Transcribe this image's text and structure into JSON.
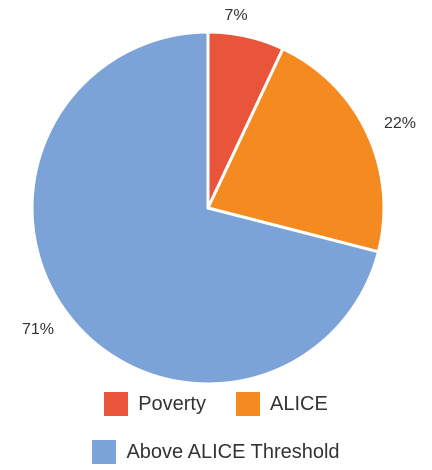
{
  "chart_data": {
    "type": "pie",
    "title": "",
    "slices": [
      {
        "label": "Poverty",
        "value": 7,
        "data_label": "7%",
        "color": "#E9553A"
      },
      {
        "label": "ALICE",
        "value": 22,
        "data_label": "22%",
        "color": "#F58A20"
      },
      {
        "label": "Above ALICE Threshold",
        "value": 71,
        "data_label": "71%",
        "color": "#7BA3D8"
      }
    ],
    "legend": "bottom"
  }
}
